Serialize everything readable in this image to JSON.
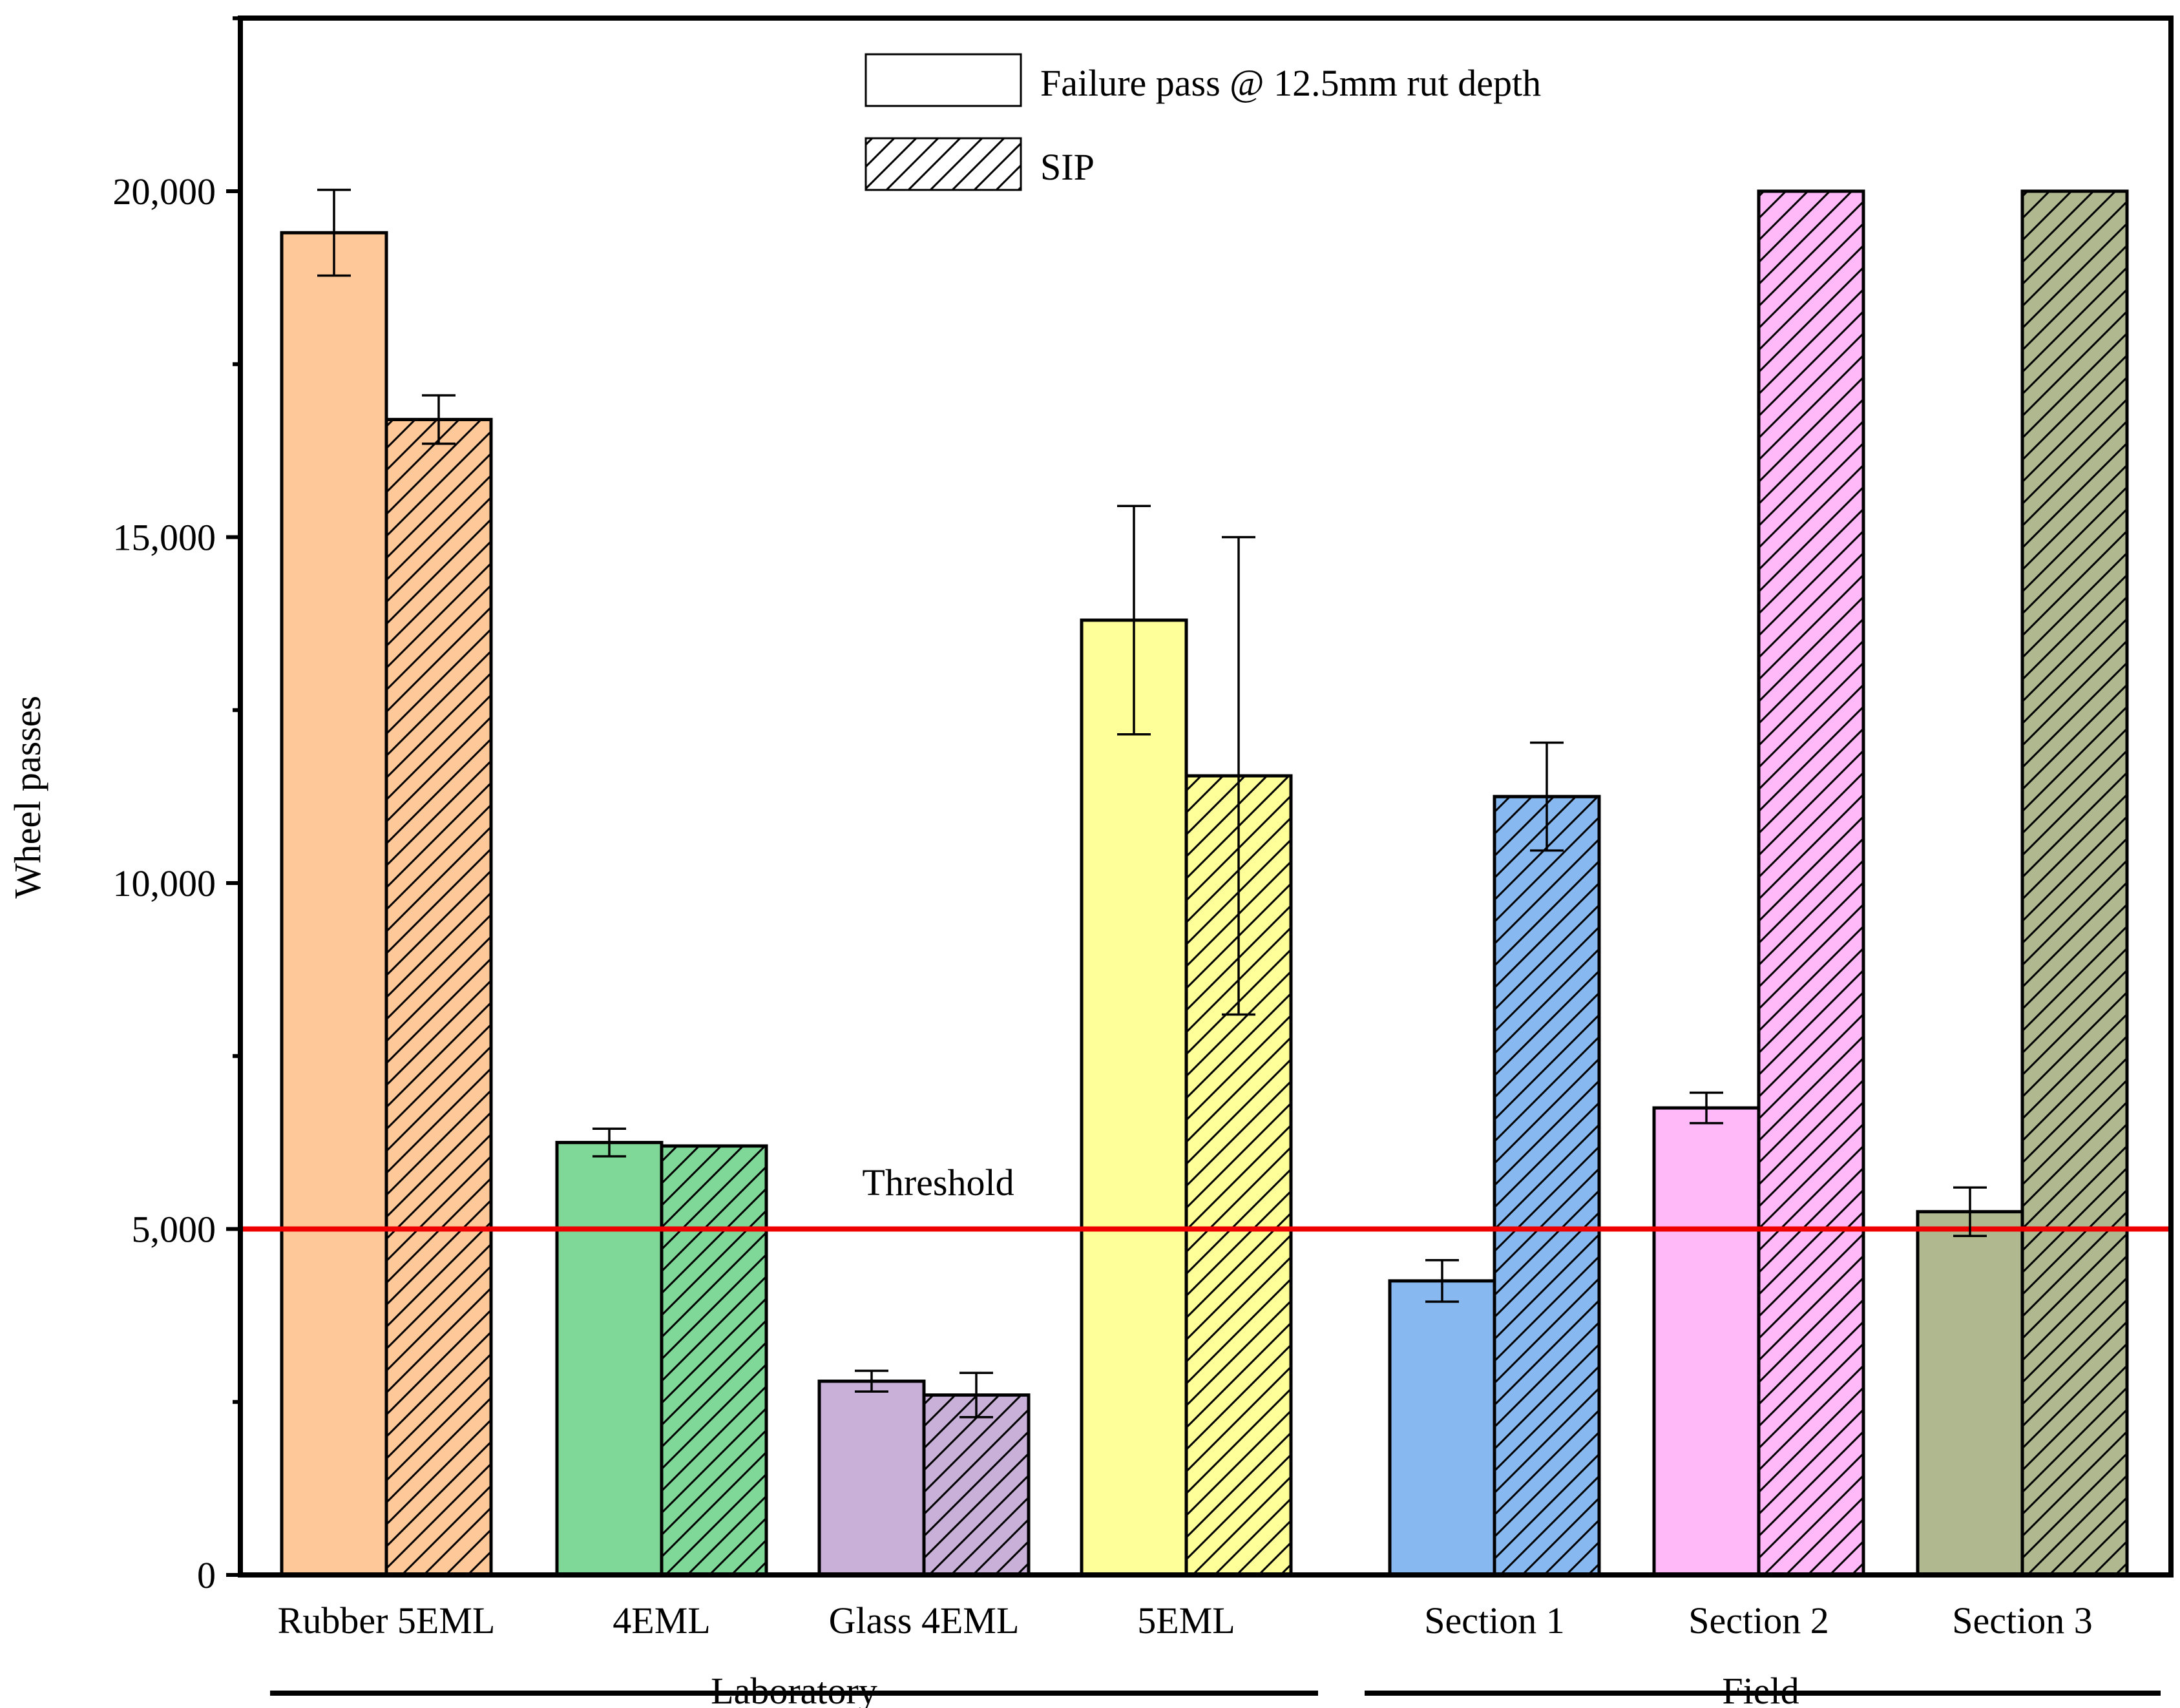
{
  "chart_data": {
    "type": "bar",
    "title": "",
    "xlabel": "",
    "ylabel": "Wheel passes",
    "ylim": [
      0,
      22500
    ],
    "yticks": [
      0,
      5000,
      10000,
      15000,
      20000
    ],
    "ytick_labels": [
      "0",
      "5,000",
      "10,000",
      "15,000",
      "20,000"
    ],
    "categories": [
      "Rubber 5EML",
      "4EML",
      "Glass 4EML",
      "5EML",
      "Section 1",
      "Section 2",
      "Section 3"
    ],
    "category_colors": [
      "#FFC898",
      "#80D898",
      "#C8B0D8",
      "#FFFF99",
      "#88B8F0",
      "#FFB8F8",
      "#B0B890"
    ],
    "groups": [
      {
        "label": "Laboratory",
        "categories": [
          "Rubber 5EML",
          "4EML",
          "Glass 4EML",
          "5EML"
        ]
      },
      {
        "label": "Field",
        "categories": [
          "Section 1",
          "Section 2",
          "Section 3"
        ]
      }
    ],
    "series": [
      {
        "name": "Failure pass @ 12.5mm rut depth",
        "pattern": "solid",
        "values": [
          19400,
          6250,
          2800,
          13800,
          4250,
          6750,
          5250
        ],
        "errors": [
          620,
          200,
          150,
          1650,
          300,
          220,
          350
        ]
      },
      {
        "name": "SIP",
        "pattern": "hatch",
        "values": [
          16700,
          6200,
          2600,
          11550,
          11250,
          20000,
          20000
        ],
        "errors": [
          350,
          0,
          320,
          3450,
          780,
          0,
          0
        ]
      }
    ],
    "threshold": {
      "value": 5000,
      "label": "Threshold",
      "color": "#EE0000"
    },
    "legend": {
      "position": "top-center"
    }
  }
}
